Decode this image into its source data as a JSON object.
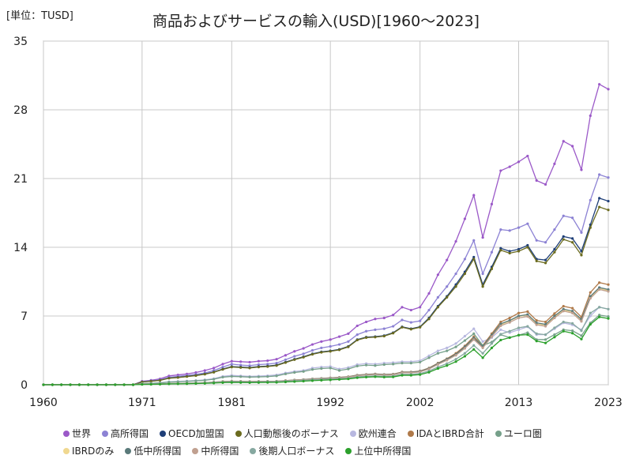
{
  "unit_label": "[単位：TUSD]",
  "chart_data": {
    "type": "line",
    "title": "商品およびサービスの輸入(USD)[1960～2023]",
    "xlabel": "",
    "ylabel": "",
    "xlim": [
      1960,
      2023
    ],
    "ylim": [
      0,
      35
    ],
    "x_ticks": [
      1960,
      1971,
      1981,
      1992,
      2002,
      2013,
      2023
    ],
    "y_ticks": [
      0,
      7,
      14,
      21,
      28,
      35
    ],
    "grid": true,
    "legend_position": "bottom",
    "x": [
      1960,
      1961,
      1962,
      1963,
      1964,
      1965,
      1966,
      1967,
      1968,
      1969,
      1970,
      1971,
      1972,
      1973,
      1974,
      1975,
      1976,
      1977,
      1978,
      1979,
      1980,
      1981,
      1982,
      1983,
      1984,
      1985,
      1986,
      1987,
      1988,
      1989,
      1990,
      1991,
      1992,
      1993,
      1994,
      1995,
      1996,
      1997,
      1998,
      1999,
      2000,
      2001,
      2002,
      2003,
      2004,
      2005,
      2006,
      2007,
      2008,
      2009,
      2010,
      2011,
      2012,
      2013,
      2014,
      2015,
      2016,
      2017,
      2018,
      2019,
      2020,
      2021,
      2022,
      2023
    ],
    "series": [
      {
        "name": "世界",
        "color": "#9b59c8",
        "values": [
          0,
          0,
          0,
          0,
          0,
          0,
          0,
          0,
          0,
          0,
          0,
          0.35,
          0.45,
          0.6,
          0.9,
          1.0,
          1.1,
          1.25,
          1.45,
          1.7,
          2.1,
          2.4,
          2.35,
          2.3,
          2.4,
          2.45,
          2.6,
          3.0,
          3.4,
          3.7,
          4.1,
          4.4,
          4.6,
          4.9,
          5.2,
          6.0,
          6.4,
          6.7,
          6.8,
          7.1,
          7.9,
          7.6,
          7.9,
          9.3,
          11.2,
          12.7,
          14.6,
          16.9,
          19.3,
          15.0,
          18.4,
          21.8,
          22.2,
          22.7,
          23.3,
          20.8,
          20.4,
          22.5,
          24.8,
          24.3,
          21.9,
          27.4,
          30.6,
          30.1
        ]
      },
      {
        "name": "高所得国",
        "color": "#8c82d4",
        "values": [
          0,
          0,
          0,
          0,
          0,
          0,
          0,
          0,
          0,
          0,
          0,
          0.3,
          0.4,
          0.5,
          0.75,
          0.85,
          0.95,
          1.05,
          1.2,
          1.45,
          1.8,
          2.1,
          2.0,
          1.95,
          2.05,
          2.1,
          2.2,
          2.55,
          2.9,
          3.15,
          3.5,
          3.75,
          3.9,
          4.1,
          4.4,
          5.1,
          5.45,
          5.6,
          5.7,
          5.95,
          6.6,
          6.35,
          6.5,
          7.6,
          8.9,
          10.0,
          11.3,
          12.8,
          14.7,
          11.3,
          13.5,
          15.8,
          15.7,
          16.0,
          16.4,
          14.7,
          14.5,
          15.8,
          17.2,
          17.0,
          15.5,
          18.8,
          21.4,
          21.1
        ]
      },
      {
        "name": "OECD加盟国",
        "color": "#1f3f78",
        "values": [
          0,
          0,
          0,
          0,
          0,
          0,
          0,
          0,
          0,
          0,
          0,
          0.28,
          0.36,
          0.45,
          0.68,
          0.75,
          0.85,
          0.95,
          1.1,
          1.3,
          1.6,
          1.85,
          1.8,
          1.75,
          1.85,
          1.9,
          2.0,
          2.3,
          2.6,
          2.85,
          3.15,
          3.35,
          3.45,
          3.6,
          3.9,
          4.6,
          4.85,
          4.9,
          5.0,
          5.3,
          5.9,
          5.7,
          5.9,
          6.8,
          8.0,
          9.0,
          10.2,
          11.5,
          13.0,
          10.2,
          12.0,
          13.9,
          13.6,
          13.8,
          14.2,
          12.8,
          12.7,
          13.8,
          15.1,
          14.9,
          13.6,
          16.3,
          19.0,
          18.7
        ]
      },
      {
        "name": "人口動態後のボーナス",
        "color": "#6b6b1f",
        "values": [
          0,
          0,
          0,
          0,
          0,
          0,
          0,
          0,
          0,
          0,
          0,
          0.27,
          0.35,
          0.44,
          0.66,
          0.73,
          0.83,
          0.93,
          1.07,
          1.27,
          1.56,
          1.8,
          1.75,
          1.7,
          1.8,
          1.85,
          1.95,
          2.25,
          2.55,
          2.8,
          3.1,
          3.3,
          3.4,
          3.55,
          3.85,
          4.55,
          4.8,
          4.85,
          4.95,
          5.25,
          5.85,
          5.65,
          5.85,
          6.7,
          7.9,
          8.9,
          10.0,
          11.3,
          12.8,
          10.0,
          11.8,
          13.7,
          13.4,
          13.6,
          14.0,
          12.6,
          12.4,
          13.5,
          14.8,
          14.5,
          13.2,
          16.0,
          18.1,
          17.8
        ]
      },
      {
        "name": "欧州連合",
        "color": "#b8b8e0",
        "values": [
          0,
          0,
          0,
          0,
          0,
          0,
          0,
          0,
          0,
          0,
          0,
          0.12,
          0.15,
          0.2,
          0.3,
          0.34,
          0.38,
          0.43,
          0.5,
          0.62,
          0.85,
          0.95,
          0.9,
          0.85,
          0.88,
          0.92,
          1.0,
          1.2,
          1.35,
          1.45,
          1.7,
          1.8,
          1.85,
          1.6,
          1.75,
          2.05,
          2.15,
          2.1,
          2.2,
          2.25,
          2.35,
          2.35,
          2.45,
          2.95,
          3.45,
          3.75,
          4.2,
          4.95,
          5.7,
          4.4,
          4.8,
          5.6,
          5.3,
          5.6,
          5.9,
          5.1,
          5.1,
          5.7,
          6.3,
          6.1,
          5.6,
          7.0,
          7.9,
          7.7
        ]
      },
      {
        "name": "IDAとIBRD合計",
        "color": "#b07a4a",
        "values": [
          0,
          0,
          0,
          0,
          0,
          0,
          0,
          0,
          0,
          0,
          0,
          0.05,
          0.06,
          0.08,
          0.12,
          0.14,
          0.16,
          0.18,
          0.21,
          0.26,
          0.33,
          0.36,
          0.35,
          0.33,
          0.34,
          0.35,
          0.36,
          0.42,
          0.48,
          0.53,
          0.6,
          0.65,
          0.7,
          0.75,
          0.82,
          0.98,
          1.05,
          1.1,
          1.05,
          1.08,
          1.3,
          1.3,
          1.4,
          1.7,
          2.2,
          2.65,
          3.2,
          3.95,
          4.9,
          4.0,
          5.2,
          6.4,
          6.8,
          7.3,
          7.45,
          6.55,
          6.4,
          7.25,
          8.0,
          7.8,
          6.9,
          9.4,
          10.4,
          10.2
        ]
      },
      {
        "name": "ユーロ圏",
        "color": "#76a08a",
        "values": [
          0,
          0,
          0,
          0,
          0,
          0,
          0,
          0,
          0,
          0,
          0,
          0.11,
          0.14,
          0.18,
          0.27,
          0.3,
          0.34,
          0.39,
          0.45,
          0.56,
          0.77,
          0.85,
          0.82,
          0.78,
          0.8,
          0.83,
          0.9,
          1.1,
          1.25,
          1.35,
          1.55,
          1.65,
          1.7,
          1.45,
          1.6,
          1.9,
          2.0,
          1.95,
          2.05,
          2.1,
          2.2,
          2.2,
          2.3,
          2.75,
          3.2,
          3.45,
          3.85,
          4.5,
          5.2,
          4.0,
          4.35,
          5.1,
          4.8,
          5.05,
          5.3,
          4.6,
          4.6,
          5.1,
          5.6,
          5.5,
          5.0,
          6.3,
          7.1,
          6.95
        ]
      },
      {
        "name": "IBRDのみ",
        "color": "#f0d890",
        "values": [
          0,
          0,
          0,
          0,
          0,
          0,
          0,
          0,
          0,
          0,
          0,
          0.05,
          0.06,
          0.08,
          0.12,
          0.13,
          0.15,
          0.17,
          0.2,
          0.24,
          0.31,
          0.34,
          0.33,
          0.31,
          0.32,
          0.33,
          0.34,
          0.4,
          0.45,
          0.5,
          0.57,
          0.62,
          0.66,
          0.71,
          0.78,
          0.93,
          1.0,
          1.05,
          1.0,
          1.02,
          1.23,
          1.23,
          1.33,
          1.62,
          2.1,
          2.5,
          3.05,
          3.75,
          4.65,
          3.8,
          4.95,
          6.1,
          6.5,
          6.95,
          7.1,
          6.2,
          6.05,
          6.9,
          7.6,
          7.4,
          6.55,
          8.9,
          9.8,
          9.6
        ]
      },
      {
        "name": "低中所得国",
        "color": "#5a7a7a",
        "values": [
          0,
          0,
          0,
          0,
          0,
          0,
          0,
          0,
          0,
          0,
          0,
          0.05,
          0.06,
          0.08,
          0.12,
          0.14,
          0.16,
          0.18,
          0.21,
          0.26,
          0.32,
          0.35,
          0.34,
          0.32,
          0.33,
          0.34,
          0.35,
          0.41,
          0.47,
          0.52,
          0.59,
          0.64,
          0.69,
          0.74,
          0.8,
          0.96,
          1.03,
          1.08,
          1.03,
          1.05,
          1.27,
          1.27,
          1.37,
          1.66,
          2.15,
          2.6,
          3.1,
          3.85,
          4.75,
          3.9,
          5.05,
          6.2,
          6.55,
          7.0,
          7.15,
          6.3,
          6.15,
          7.0,
          7.7,
          7.5,
          6.65,
          9.0,
          9.9,
          9.7
        ]
      },
      {
        "name": "中所得国",
        "color": "#c0a090",
        "values": [
          0,
          0,
          0,
          0,
          0,
          0,
          0,
          0,
          0,
          0,
          0,
          0.05,
          0.06,
          0.08,
          0.11,
          0.13,
          0.15,
          0.17,
          0.2,
          0.24,
          0.3,
          0.33,
          0.32,
          0.3,
          0.31,
          0.32,
          0.33,
          0.39,
          0.45,
          0.5,
          0.56,
          0.61,
          0.66,
          0.71,
          0.77,
          0.92,
          0.99,
          1.04,
          0.99,
          1.01,
          1.22,
          1.22,
          1.31,
          1.6,
          2.07,
          2.5,
          3.0,
          3.7,
          4.6,
          3.75,
          4.9,
          6.0,
          6.35,
          6.8,
          6.95,
          6.1,
          5.95,
          6.8,
          7.5,
          7.3,
          6.45,
          8.8,
          9.7,
          9.5
        ]
      },
      {
        "name": "後期人口ボーナス",
        "color": "#86a8a0",
        "values": [
          0,
          0,
          0,
          0,
          0,
          0,
          0,
          0,
          0,
          0,
          0,
          0.04,
          0.05,
          0.07,
          0.1,
          0.11,
          0.13,
          0.15,
          0.17,
          0.21,
          0.26,
          0.29,
          0.28,
          0.27,
          0.28,
          0.29,
          0.3,
          0.35,
          0.4,
          0.44,
          0.5,
          0.54,
          0.58,
          0.62,
          0.67,
          0.8,
          0.86,
          0.9,
          0.86,
          0.88,
          1.06,
          1.06,
          1.14,
          1.4,
          1.8,
          2.15,
          2.6,
          3.2,
          4.0,
          3.2,
          4.2,
          5.15,
          5.45,
          5.8,
          5.95,
          5.2,
          5.1,
          5.8,
          6.4,
          6.25,
          5.5,
          7.3,
          7.9,
          7.7
        ]
      },
      {
        "name": "上位中所得国",
        "color": "#2ca02c",
        "values": [
          0,
          0,
          0,
          0,
          0,
          0,
          0,
          0,
          0,
          0,
          0,
          0.03,
          0.04,
          0.05,
          0.08,
          0.09,
          0.1,
          0.12,
          0.14,
          0.17,
          0.21,
          0.23,
          0.22,
          0.21,
          0.22,
          0.23,
          0.24,
          0.28,
          0.32,
          0.36,
          0.41,
          0.45,
          0.49,
          0.54,
          0.59,
          0.71,
          0.77,
          0.81,
          0.77,
          0.79,
          0.96,
          0.96,
          1.03,
          1.27,
          1.65,
          1.95,
          2.35,
          2.9,
          3.6,
          2.75,
          3.75,
          4.55,
          4.8,
          5.05,
          5.1,
          4.45,
          4.25,
          4.85,
          5.45,
          5.25,
          4.65,
          6.15,
          6.9,
          6.75
        ]
      }
    ]
  }
}
